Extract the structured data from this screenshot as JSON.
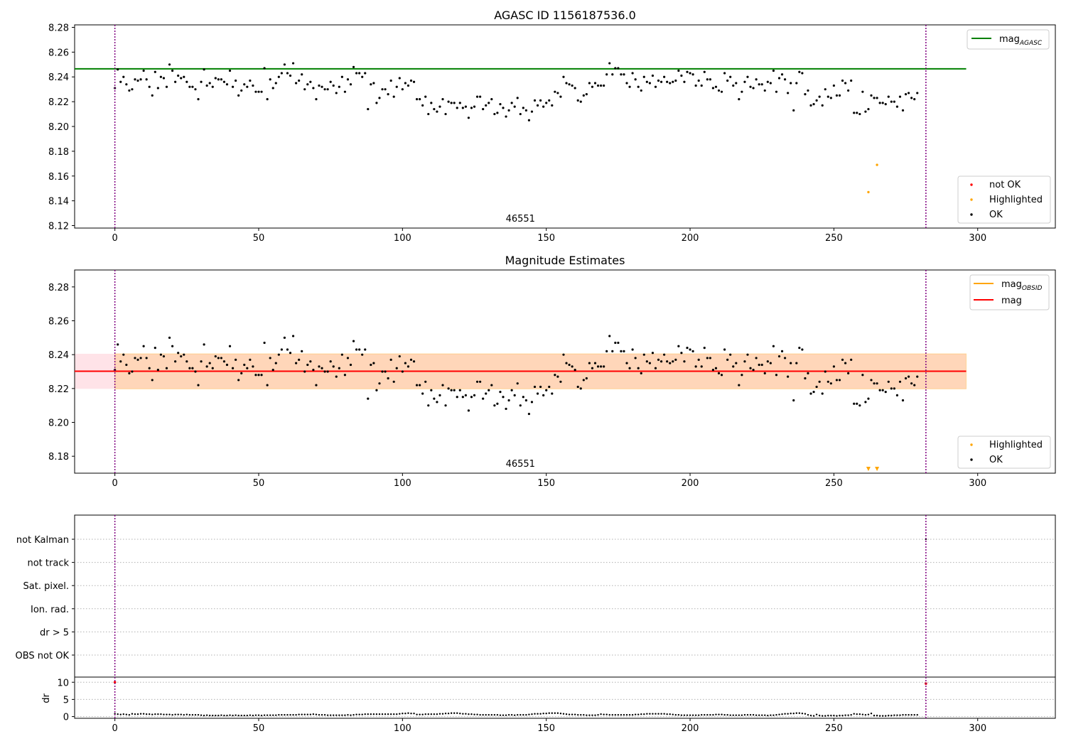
{
  "chart_data": [
    {
      "type": "scatter",
      "title": "AGASC ID 1156187536.0",
      "x_ticks": [
        "0",
        "50",
        "100",
        "150",
        "200",
        "250",
        "300"
      ],
      "y_ticks": [
        "8.12",
        "8.14",
        "8.16",
        "8.18",
        "8.20",
        "8.22",
        "8.24",
        "8.26",
        "8.28"
      ],
      "xlim": [
        -14,
        327
      ],
      "ylim": [
        8.118,
        8.282
      ],
      "obs_boundaries": [
        0,
        282
      ],
      "obs_label": {
        "text": "46551",
        "x": 141
      },
      "reference_line": {
        "name": "mag",
        "subscript": "AGASC",
        "value": 8.2465,
        "x_range": [
          -14,
          296
        ],
        "color": "#008000"
      },
      "legend_top": [
        {
          "label": "mag",
          "subscript": "AGASC",
          "kind": "line",
          "color": "#008000"
        }
      ],
      "legend_bottom": [
        {
          "label": "not OK",
          "kind": "point",
          "color": "#ff0000"
        },
        {
          "label": "Highlighted",
          "kind": "point",
          "color": "#ffa500"
        },
        {
          "label": "OK",
          "kind": "point",
          "color": "#000000"
        }
      ],
      "highlighted_points": [
        {
          "x": 262,
          "y": 8.147
        },
        {
          "x": 265,
          "y": 8.169
        }
      ]
    },
    {
      "type": "scatter",
      "title": "Magnitude Estimates",
      "x_ticks": [
        "0",
        "50",
        "100",
        "150",
        "200",
        "250",
        "300"
      ],
      "y_ticks": [
        "8.18",
        "8.20",
        "8.22",
        "8.24",
        "8.26",
        "8.28"
      ],
      "xlim": [
        -14,
        327
      ],
      "ylim": [
        8.17,
        8.29
      ],
      "obs_boundaries": [
        0,
        282
      ],
      "obs_label": {
        "text": "46551",
        "x": 141
      },
      "mean_line": {
        "name": "mag",
        "value": 8.2302,
        "color": "#ff0000"
      },
      "obsid_line": {
        "name": "mag",
        "subscript": "OBSID",
        "value": 8.2302,
        "color": "#ffa500"
      },
      "mean_band": {
        "low": 8.2198,
        "high": 8.2405,
        "x_range": [
          -14,
          296
        ],
        "color": "#ffc0cb"
      },
      "obsid_band": {
        "low": 8.2198,
        "high": 8.2405,
        "x_range": [
          0,
          296
        ],
        "color": "#ffa500"
      },
      "legend_top": [
        {
          "label": "mag",
          "subscript": "OBSID",
          "kind": "line",
          "color": "#ffa500"
        },
        {
          "label": "mag",
          "kind": "line",
          "color": "#ff0000"
        }
      ],
      "legend_bottom": [
        {
          "label": "Highlighted",
          "kind": "point",
          "color": "#ffa500"
        },
        {
          "label": "OK",
          "kind": "point",
          "color": "#000000"
        }
      ],
      "offscale_markers": [
        {
          "x": 262
        },
        {
          "x": 265
        }
      ]
    },
    {
      "type": "scatter",
      "title": "",
      "flags": [
        "not Kalman",
        "not track",
        "Sat. pixel.",
        "Ion. rad.",
        "dr > 5",
        "OBS not OK"
      ],
      "x_ticks": [
        "0",
        "50",
        "100",
        "150",
        "200",
        "250",
        "300"
      ],
      "xlim": [
        -14,
        327
      ],
      "obs_boundaries": [
        0,
        282
      ],
      "flag_points": [
        {
          "flag": "not Kalman",
          "x": 282
        }
      ],
      "dr_panel": {
        "ylabel": "dr",
        "y_ticks": [
          "0",
          "5",
          "10"
        ],
        "ylim": [
          -0.5,
          11.5
        ],
        "outlier_points": [
          {
            "x": 0,
            "y": 10.0
          },
          {
            "x": 282,
            "y": 9.6
          }
        ]
      }
    }
  ],
  "mag_series": [
    8.231,
    8.246,
    8.236,
    8.24,
    8.234,
    8.229,
    8.23,
    8.238,
    8.237,
    8.238,
    8.245,
    8.238,
    8.232,
    8.225,
    8.244,
    8.231,
    8.24,
    8.239,
    8.232,
    8.25,
    8.245,
    8.236,
    8.241,
    8.239,
    8.24,
    8.236,
    8.232,
    8.232,
    8.23,
    8.222,
    8.236,
    8.246,
    8.233,
    8.235,
    8.232,
    8.239,
    8.238,
    8.238,
    8.236,
    8.234,
    8.245,
    8.232,
    8.237,
    8.225,
    8.229,
    8.234,
    8.232,
    8.237,
    8.233,
    8.228,
    8.228,
    8.228,
    8.247,
    8.222,
    8.238,
    8.231,
    8.235,
    8.24,
    8.243,
    8.25,
    8.243,
    8.241,
    8.251,
    8.235,
    8.237,
    8.242,
    8.23,
    8.234,
    8.236,
    8.231,
    8.222,
    8.233,
    8.232,
    8.23,
    8.23,
    8.236,
    8.233,
    8.227,
    8.232,
    8.24,
    8.228,
    8.238,
    8.234,
    8.248,
    8.243,
    8.243,
    8.24,
    8.243,
    8.214,
    8.234,
    8.235,
    8.219,
    8.223,
    8.23,
    8.23,
    8.226,
    8.237,
    8.224,
    8.232,
    8.239,
    8.23,
    8.235,
    8.233,
    8.237,
    8.236,
    8.222,
    8.222,
    8.217,
    8.224,
    8.21,
    8.219,
    8.214,
    8.212,
    8.216,
    8.222,
    8.21,
    8.22,
    8.219,
    8.219,
    8.215,
    8.219,
    8.215,
    8.216,
    8.207,
    8.215,
    8.216,
    8.224,
    8.224,
    8.214,
    8.217,
    8.219,
    8.222,
    8.21,
    8.211,
    8.218,
    8.215,
    8.208,
    8.213,
    8.219,
    8.216,
    8.223,
    8.21,
    8.215,
    8.213,
    8.205,
    8.212,
    8.221,
    8.217,
    8.221,
    8.216,
    8.219,
    8.221,
    8.217,
    8.228,
    8.227,
    8.224,
    8.24,
    8.235,
    8.234,
    8.233,
    8.231,
    8.221,
    8.22,
    8.225,
    8.226,
    8.235,
    8.232,
    8.235,
    8.233,
    8.233,
    8.233,
    8.242,
    8.251,
    8.242,
    8.247,
    8.247,
    8.242,
    8.242,
    8.235,
    8.232,
    8.243,
    8.238,
    8.232,
    8.229,
    8.24,
    8.236,
    8.235,
    8.241,
    8.232,
    8.237,
    8.236,
    8.24,
    8.236,
    8.235,
    8.236,
    8.237,
    8.245,
    8.241,
    8.236,
    8.244,
    8.243,
    8.242,
    8.233,
    8.237,
    8.233,
    8.244,
    8.238,
    8.238,
    8.231,
    8.232,
    8.229,
    8.228,
    8.243,
    8.237,
    8.24,
    8.233,
    8.235,
    8.222,
    8.228,
    8.236,
    8.24,
    8.232,
    8.231,
    8.238,
    8.234,
    8.234,
    8.229,
    8.236,
    8.235,
    8.245,
    8.228,
    8.239,
    8.242,
    8.238,
    8.227,
    8.235,
    8.213,
    8.235,
    8.244,
    8.243,
    8.226,
    8.229,
    8.217,
    8.218,
    8.221,
    8.224,
    8.217,
    8.23,
    8.224,
    8.223,
    8.233,
    8.225,
    8.225,
    8.237,
    8.235,
    8.229,
    8.237,
    8.211,
    8.211,
    8.21,
    8.228,
    8.212,
    8.214,
    8.225,
    8.223,
    8.223,
    8.219,
    8.219,
    8.218,
    8.224,
    8.22,
    8.22,
    8.216,
    8.224,
    8.213,
    8.226,
    8.227,
    8.223,
    8.222,
    8.227
  ],
  "dr_series": [
    0.8,
    0.7,
    0.6,
    0.7,
    0.6,
    0.5,
    0.8,
    0.7,
    0.7,
    0.8,
    0.8,
    0.7,
    0.7,
    0.6,
    0.7,
    0.7,
    0.7,
    0.6,
    0.6,
    0.6,
    0.5,
    0.6,
    0.6,
    0.6,
    0.5,
    0.6,
    0.5,
    0.5,
    0.5,
    0.5,
    0.4,
    0.3,
    0.4,
    0.3,
    0.3,
    0.3,
    0.3,
    0.4,
    0.3,
    0.3,
    0.4,
    0.3,
    0.4,
    0.3,
    0.3,
    0.3,
    0.3,
    0.4,
    0.3,
    0.4,
    0.4,
    0.3,
    0.4,
    0.4,
    0.4,
    0.4,
    0.4,
    0.5,
    0.5,
    0.5,
    0.5,
    0.5,
    0.5,
    0.5,
    0.6,
    0.6,
    0.6,
    0.6,
    0.6,
    0.7,
    0.6,
    0.5,
    0.5,
    0.5,
    0.4,
    0.4,
    0.4,
    0.4,
    0.4,
    0.4,
    0.4,
    0.5,
    0.4,
    0.5,
    0.6,
    0.6,
    0.6,
    0.7,
    0.7,
    0.7,
    0.7,
    0.7,
    0.7,
    0.7,
    0.7,
    0.7,
    0.7,
    0.7,
    0.7,
    0.8,
    0.9,
    0.9,
    1.0,
    0.9,
    0.9,
    0.6,
    0.6,
    0.6,
    0.7,
    0.7,
    0.7,
    0.7,
    0.7,
    0.8,
    0.8,
    0.9,
    0.9,
    1.0,
    1.0,
    1.0,
    0.9,
    0.8,
    0.8,
    0.7,
    0.7,
    0.6,
    0.6,
    0.5,
    0.5,
    0.5,
    0.5,
    0.5,
    0.5,
    0.5,
    0.4,
    0.4,
    0.4,
    0.5,
    0.5,
    0.4,
    0.5,
    0.5,
    0.5,
    0.5,
    0.6,
    0.7,
    0.8,
    0.8,
    0.8,
    0.9,
    0.9,
    1.0,
    1.0,
    1.0,
    1.0,
    0.9,
    0.8,
    0.7,
    0.6,
    0.6,
    0.6,
    0.5,
    0.5,
    0.5,
    0.4,
    0.4,
    0.4,
    0.4,
    0.5,
    0.7,
    0.6,
    0.6,
    0.5,
    0.5,
    0.5,
    0.5,
    0.5,
    0.5,
    0.5,
    0.5,
    0.5,
    0.6,
    0.6,
    0.7,
    0.7,
    0.8,
    0.8,
    0.8,
    0.8,
    0.8,
    0.8,
    0.8,
    0.7,
    0.7,
    0.6,
    0.5,
    0.5,
    0.4,
    0.4,
    0.4,
    0.4,
    0.4,
    0.4,
    0.4,
    0.5,
    0.5,
    0.5,
    0.5,
    0.5,
    0.6,
    0.6,
    0.6,
    0.5,
    0.5,
    0.4,
    0.4,
    0.4,
    0.4,
    0.4,
    0.5,
    0.5,
    0.5,
    0.5,
    0.4,
    0.4,
    0.4,
    0.4,
    0.3,
    0.4,
    0.4,
    0.5,
    0.6,
    0.7,
    0.8,
    0.8,
    0.9,
    0.9,
    1.0,
    1.0,
    0.9,
    0.8,
    0.5,
    0.3,
    0.2,
    0.6,
    0.3,
    0.2,
    0.2,
    0.3,
    0.3,
    0.3,
    0.2,
    0.3,
    0.3,
    0.4,
    0.4,
    0.5,
    0.8,
    0.7,
    0.7,
    0.6,
    0.5,
    0.6,
    0.9,
    0.3,
    0.3,
    0.2,
    0.2,
    0.2,
    0.3,
    0.3,
    0.4,
    0.4,
    0.4,
    0.5,
    0.5,
    0.5,
    0.5,
    0.5,
    0.5
  ]
}
